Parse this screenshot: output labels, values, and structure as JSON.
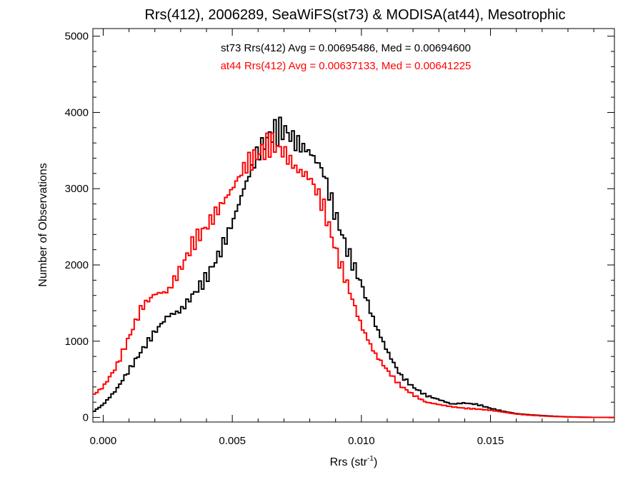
{
  "chart_data": {
    "type": "line",
    "step": true,
    "title": "Rrs(412), 2006289, SeaWiFS(st73) & MODISA(at44), Mesotrophic",
    "xlabel": {
      "base": "Rrs (str",
      "sup": "-1",
      "close": ")"
    },
    "ylabel": "Number of Observations",
    "xlim": [
      -0.0004,
      0.0198
    ],
    "ylim": [
      -60,
      5100
    ],
    "x_ticks": [
      0.0,
      0.005,
      0.01,
      0.015
    ],
    "x_tick_labels": [
      "0.000",
      "0.005",
      "0.010",
      "0.015"
    ],
    "y_ticks": [
      0,
      1000,
      2000,
      3000,
      4000,
      5000
    ],
    "y_tick_labels": [
      "0",
      "1000",
      "2000",
      "3000",
      "4000",
      "5000"
    ],
    "annotations": [
      {
        "text": "st73 Rrs(412) Avg = 0.00695486, Med = 0.00694600",
        "color": "#000000"
      },
      {
        "text": "at44 Rrs(412) Avg = 0.00637133, Med = 0.00641225",
        "color": "#ff0000"
      }
    ],
    "series": [
      {
        "color": "#000000",
        "points": [
          [
            -0.0004,
            70
          ],
          [
            0.0,
            170
          ],
          [
            0.0005,
            360
          ],
          [
            0.001,
            620
          ],
          [
            0.0015,
            880
          ],
          [
            0.002,
            1120
          ],
          [
            0.0025,
            1330
          ],
          [
            0.003,
            1400
          ],
          [
            0.0035,
            1620
          ],
          [
            0.004,
            1830
          ],
          [
            0.0045,
            2150
          ],
          [
            0.005,
            2550
          ],
          [
            0.0055,
            3050
          ],
          [
            0.006,
            3480
          ],
          [
            0.0065,
            3720
          ],
          [
            0.007,
            3780
          ],
          [
            0.0075,
            3600
          ],
          [
            0.008,
            3480
          ],
          [
            0.0085,
            3250
          ],
          [
            0.009,
            2650
          ],
          [
            0.0095,
            2150
          ],
          [
            0.01,
            1750
          ],
          [
            0.0105,
            1250
          ],
          [
            0.011,
            870
          ],
          [
            0.0115,
            560
          ],
          [
            0.012,
            400
          ],
          [
            0.0125,
            290
          ],
          [
            0.013,
            235
          ],
          [
            0.0135,
            175
          ],
          [
            0.014,
            190
          ],
          [
            0.0145,
            170
          ],
          [
            0.015,
            120
          ],
          [
            0.0155,
            80
          ],
          [
            0.016,
            50
          ],
          [
            0.0165,
            35
          ],
          [
            0.017,
            25
          ],
          [
            0.0175,
            15
          ],
          [
            0.018,
            8
          ],
          [
            0.0185,
            4
          ],
          [
            0.019,
            1
          ],
          [
            0.0198,
            0
          ]
        ]
      },
      {
        "color": "#ff0000",
        "points": [
          [
            -0.0004,
            290
          ],
          [
            0.0,
            400
          ],
          [
            0.0005,
            660
          ],
          [
            0.001,
            1050
          ],
          [
            0.0015,
            1450
          ],
          [
            0.002,
            1620
          ],
          [
            0.0025,
            1650
          ],
          [
            0.003,
            1950
          ],
          [
            0.0035,
            2300
          ],
          [
            0.004,
            2500
          ],
          [
            0.0045,
            2750
          ],
          [
            0.005,
            3000
          ],
          [
            0.0055,
            3300
          ],
          [
            0.006,
            3450
          ],
          [
            0.0065,
            3600
          ],
          [
            0.007,
            3480
          ],
          [
            0.0075,
            3250
          ],
          [
            0.008,
            3150
          ],
          [
            0.0085,
            2800
          ],
          [
            0.009,
            2200
          ],
          [
            0.0095,
            1700
          ],
          [
            0.01,
            1200
          ],
          [
            0.0105,
            850
          ],
          [
            0.011,
            620
          ],
          [
            0.0115,
            420
          ],
          [
            0.012,
            300
          ],
          [
            0.0125,
            200
          ],
          [
            0.013,
            170
          ],
          [
            0.0135,
            140
          ],
          [
            0.014,
            120
          ],
          [
            0.0145,
            110
          ],
          [
            0.015,
            95
          ],
          [
            0.0155,
            70
          ],
          [
            0.016,
            45
          ],
          [
            0.0165,
            30
          ],
          [
            0.017,
            20
          ],
          [
            0.0175,
            12
          ],
          [
            0.018,
            7
          ],
          [
            0.0185,
            3
          ],
          [
            0.019,
            1
          ],
          [
            0.0198,
            0
          ]
        ]
      }
    ]
  }
}
